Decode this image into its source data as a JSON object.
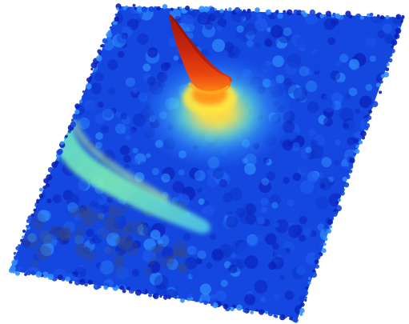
{
  "scene": {
    "kind": "3d-surface-plot",
    "colormap": "jet",
    "palette": {
      "background": "#ffffff",
      "base": "#1446e0",
      "deep": "#0a1fb8",
      "light_blue": "#2f8cff",
      "cyan": "#3fd9e6",
      "yellow": "#f2e23a",
      "orange": "#ff7a10",
      "red": "#d42a0c",
      "dark_red": "#8c1206"
    },
    "features": [
      {
        "name": "sharp-peak",
        "relative_height": 1.0
      },
      {
        "name": "ridge-band",
        "relative_height": 0.35
      }
    ]
  }
}
